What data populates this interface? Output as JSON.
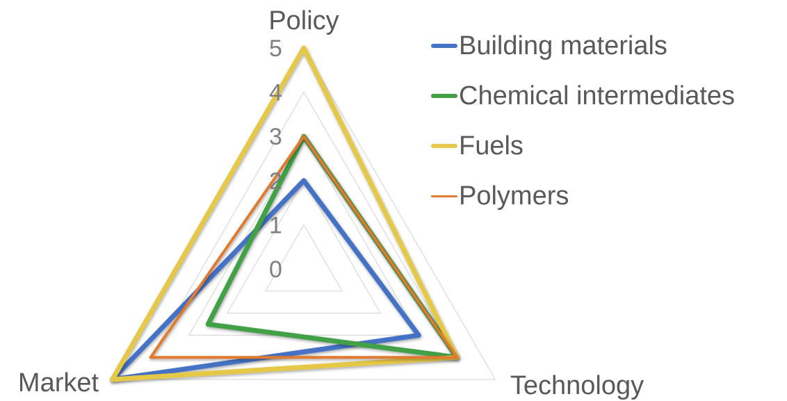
{
  "chart_data": {
    "type": "radar",
    "axes": [
      "Policy",
      "Technology",
      "Market"
    ],
    "rlim": [
      0,
      5
    ],
    "ticks": [
      "0",
      "1",
      "2",
      "3",
      "4",
      "5"
    ],
    "grid": true,
    "legend_position": "right",
    "series": [
      {
        "name": "Building materials",
        "color": "#4472C4",
        "values": [
          2,
          3,
          5
        ]
      },
      {
        "name": "Chemical intermediates",
        "color": "#43A047",
        "values": [
          3,
          4,
          2.5
        ]
      },
      {
        "name": "Fuels",
        "color": "#E6C84A",
        "values": [
          5,
          4,
          5
        ]
      },
      {
        "name": "Polymers",
        "color": "#E07A2E",
        "values": [
          3,
          4,
          4
        ]
      }
    ]
  }
}
